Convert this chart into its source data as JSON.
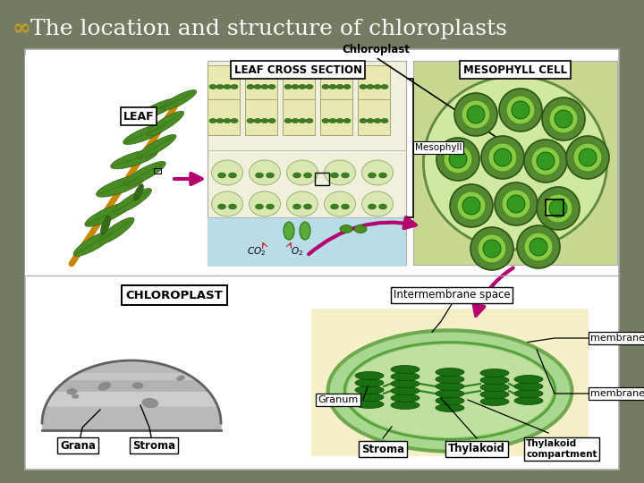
{
  "title_text": "The location and structure of chloroplasts",
  "title_symbol": "∞",
  "title_color": "#ffffff",
  "title_symbol_color": "#c8a020",
  "title_fontsize": 18,
  "bg_color": "#737b62",
  "panel_bg": "#ffffff",
  "label_chloroplast_top": "Chloroplast",
  "label_leaf_cross": "LEAF CROSS SECTION",
  "label_mesophyll_cell": "MESOPHYLL CELL",
  "label_leaf": "LEAF",
  "label_mesophyll": "Mesophyll",
  "label_chloroplast2": "CHLOROPLAST",
  "label_intermembrane": "Intermembrane space",
  "label_membrane1": "membrane",
  "label_membrane2": "membrane",
  "label_granum": "Granum",
  "label_grana": "Grana",
  "label_stroma1": "Stroma",
  "label_stroma2": "Stroma",
  "label_thylakoid": "Thylakoid",
  "label_thylakoid_comp": "Thylakoid\ncompartment",
  "arrow_color": "#b5006e",
  "figsize": [
    7.2,
    5.4
  ],
  "dpi": 100
}
